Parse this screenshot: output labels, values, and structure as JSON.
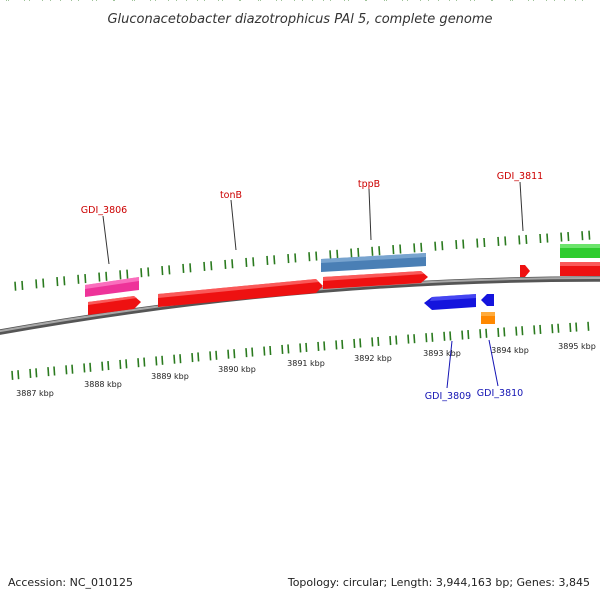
{
  "title": "Gluconacetobacter diazotrophicus PAl 5, complete genome",
  "footer": {
    "accession": "Accession: NC_010125",
    "summary": "Topology: circular; Length: 3,944,163 bp; Genes: 3,845"
  },
  "colors": {
    "backbone": "#808080",
    "tick": "#2a7a1e",
    "forward_label": "#cc0000",
    "reverse_label": "#1414b4",
    "cds_red": "#ee1111",
    "gene_pink": "#ee3399",
    "gene_steel": "#4a7fb5",
    "gene_blue": "#1414dd",
    "gene_orange": "#ff8800",
    "gene_green": "#2ecc2e"
  },
  "scale": {
    "unit": "kbp",
    "labels": [
      "3887 kbp",
      "3888 kbp",
      "3889 kbp",
      "3890 kbp",
      "3891 kbp",
      "3892 kbp",
      "3893 kbp",
      "3894 kbp",
      "3895 kbp"
    ]
  },
  "genes": {
    "forward_labels": [
      "GDI_3806",
      "tonB",
      "tppB",
      "GDI_3811"
    ],
    "reverse_labels": [
      "GDI_3809",
      "GDI_3810"
    ]
  }
}
